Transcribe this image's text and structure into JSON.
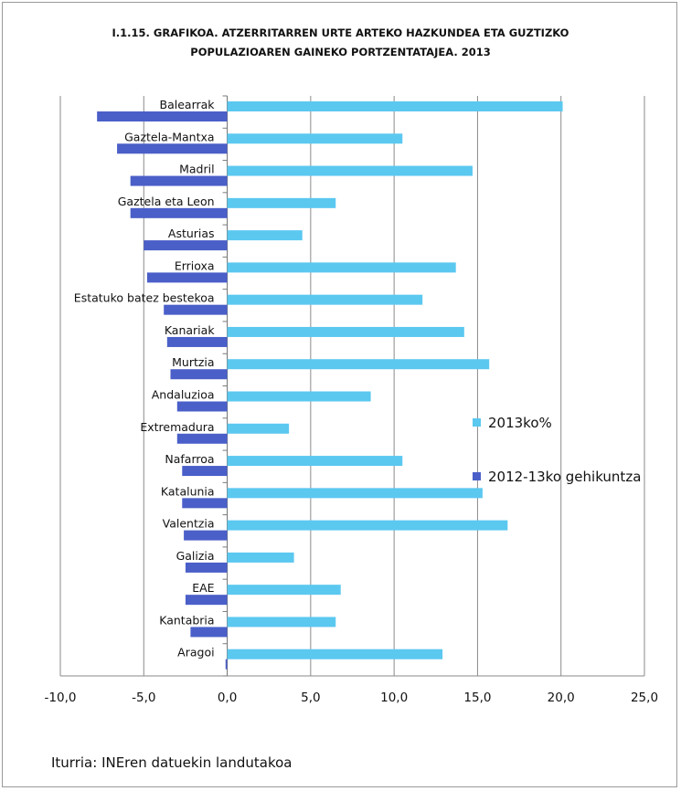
{
  "chart_data": {
    "type": "bar",
    "orientation": "horizontal",
    "title_lines": [
      "I.1.15. GRAFIKOA. ATZERRITARREN URTE ARTEKO HAZKUNDEA ETA GUZTIZKO",
      "POPULAZIOAREN GAINEKO PORTZENTATAJEA. 2013"
    ],
    "categories": [
      "Balearrak",
      "Gaztela-Mantxa",
      "Madril",
      "Gaztela eta Leon",
      "Asturias",
      "Errioxa",
      "Estatuko batez bestekoa",
      "Kanariak",
      "Murtzia",
      "Andaluzioa",
      "Extremadura",
      "Nafarroa",
      "Katalunia",
      "Valentzia",
      "Galizia",
      "EAE",
      "Kantabria",
      "Aragoi"
    ],
    "series": [
      {
        "name": "2013ko%",
        "color": "#5bc8f0",
        "values": [
          20.1,
          10.5,
          14.7,
          6.5,
          4.5,
          13.7,
          11.7,
          14.2,
          15.7,
          8.6,
          3.7,
          10.5,
          15.3,
          16.8,
          4.0,
          6.8,
          6.5,
          12.9
        ]
      },
      {
        "name": "2012-13ko gehikuntza",
        "color": "#4a5fc8",
        "values": [
          -7.8,
          -6.6,
          -5.8,
          -5.8,
          -5.0,
          -4.8,
          -3.8,
          -3.6,
          -3.4,
          -3.0,
          -3.0,
          -2.7,
          -2.7,
          -2.6,
          -2.5,
          -2.5,
          -2.2,
          -0.1
        ]
      }
    ],
    "xlim": [
      -10,
      25
    ],
    "xticks": [
      -10,
      -5,
      0,
      5,
      10,
      15,
      20,
      25
    ],
    "xtick_labels": [
      "-10,0",
      "-5,0",
      "0,0",
      "5,0",
      "10,0",
      "15,0",
      "20,0",
      "25,0"
    ],
    "grid": "vertical",
    "legend_position": "right"
  },
  "source": "Iturria: INEren datuekin landutakoa"
}
